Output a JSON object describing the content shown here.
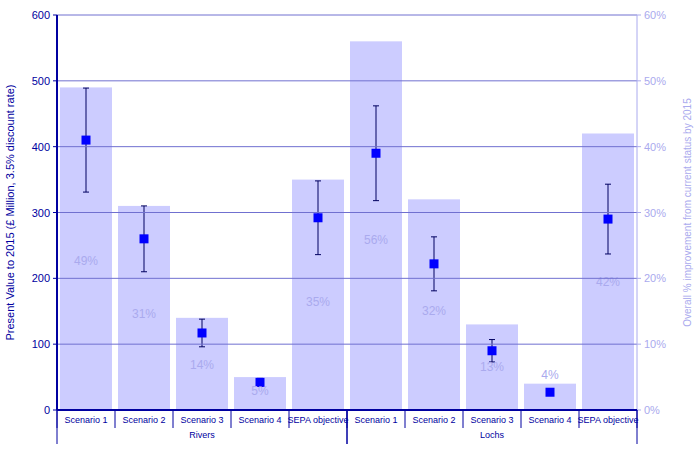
{
  "chart_data": {
    "type": "bar",
    "y_label": "Present Value to 2015 (£ Million, 3.5% discount rate)",
    "y2_label": "Overall % improvement from current status by 2015",
    "categories": [
      "Scenario 1",
      "Scenario 2",
      "Scenario 3",
      "Scenario 4",
      "SEPA objective",
      "Scenario 1",
      "Scenario 2",
      "Scenario 3",
      "Scenario 4",
      "SEPA objective"
    ],
    "groups": [
      {
        "name": "Rivers",
        "count": 5
      },
      {
        "name": "Lochs",
        "count": 5
      }
    ],
    "series": [
      {
        "type": "bar",
        "axis": "y2",
        "color": "#ccccff",
        "values": [
          49,
          31,
          14,
          5,
          35,
          56,
          32,
          13,
          4,
          42
        ],
        "value_labels": [
          "49%",
          "31%",
          "14%",
          "5%",
          "35%",
          "56%",
          "32%",
          "13%",
          "4%",
          "42%"
        ]
      },
      {
        "type": "scatter",
        "marker": "square",
        "color": "#0000ff",
        "values": [
          410,
          260,
          117,
          42,
          292,
          390,
          222,
          90,
          27,
          290
        ],
        "errors": [
          79,
          50,
          21,
          6,
          56,
          72,
          41,
          17,
          2,
          53
        ]
      }
    ],
    "ylim": [
      0,
      600
    ],
    "yticks": [
      0,
      100,
      200,
      300,
      400,
      500,
      600
    ],
    "y2lim": [
      0,
      60
    ],
    "y2ticks": [
      {
        "value": 0,
        "label": "0%"
      },
      {
        "value": 10,
        "label": "10%"
      },
      {
        "value": 20,
        "label": "20%"
      },
      {
        "value": 30,
        "label": "30%"
      },
      {
        "value": 40,
        "label": "40%"
      },
      {
        "value": 50,
        "label": "50%"
      },
      {
        "value": 60,
        "label": "60%"
      }
    ],
    "grid": true,
    "data_labels": true
  }
}
